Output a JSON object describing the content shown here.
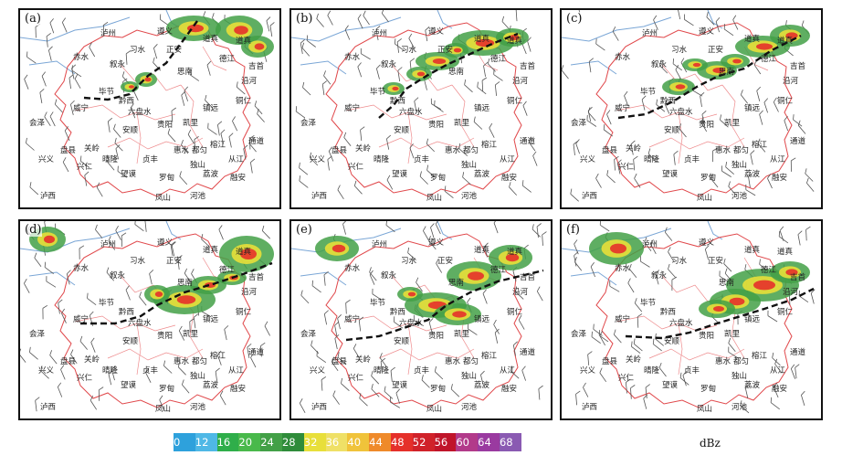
{
  "panels": [
    {
      "label": "(a)"
    },
    {
      "label": "(b)"
    },
    {
      "label": "(c)"
    },
    {
      "label": "(d)"
    },
    {
      "label": "(e)"
    },
    {
      "label": "(f)"
    }
  ],
  "places": [
    "泸州",
    "赤水",
    "遵义",
    "毕节",
    "威宁",
    "六盘水",
    "安顺",
    "贵阳",
    "凯里",
    "铜仁",
    "思南",
    "镇远",
    "惠水",
    "黔西",
    "会泽",
    "德江",
    "都匀",
    "荔波",
    "兴义",
    "兴仁",
    "罗甸",
    "关岭",
    "望谟",
    "独山",
    "榕江",
    "从江",
    "融安",
    "通道",
    "沿河",
    "道真",
    "习水",
    "正安",
    "吉首",
    "泸西",
    "河池",
    "凤山",
    "叙永",
    "道真",
    "盘县",
    "晴隆",
    "贞丰"
  ],
  "legend": {
    "ticks": [
      "0",
      "12",
      "16",
      "20",
      "24",
      "28",
      "32",
      "36",
      "40",
      "44",
      "48",
      "52",
      "56",
      "60",
      "64",
      "68"
    ],
    "colors": [
      "#2ea1dc",
      "#4fb8e6",
      "#2fae4a",
      "#49b94b",
      "#43a047",
      "#2f8c3a",
      "#e8df3a",
      "#efe066",
      "#f0c33a",
      "#ef8a2a",
      "#e5302a",
      "#d0222a",
      "#c0152a",
      "#b23a8a",
      "#9a3aa0",
      "#8a5ab2"
    ],
    "unit": "dBz"
  }
}
